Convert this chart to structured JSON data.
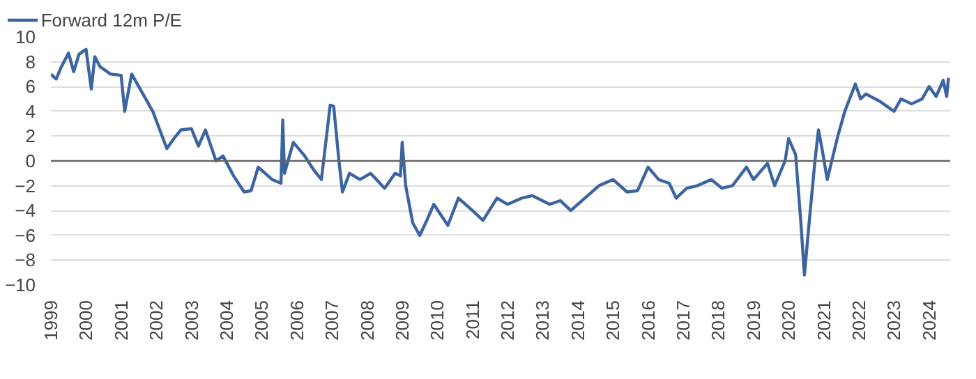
{
  "chart_data": {
    "type": "line",
    "x": [
      1999.0,
      1999.15,
      1999.3,
      1999.5,
      1999.65,
      1999.8,
      2000.0,
      2000.15,
      2000.25,
      2000.4,
      2000.7,
      2001.0,
      2001.1,
      2001.3,
      2001.5,
      2001.9,
      2002.1,
      2002.3,
      2002.5,
      2002.7,
      2003.0,
      2003.2,
      2003.4,
      2003.7,
      2003.9,
      2004.2,
      2004.5,
      2004.7,
      2004.9,
      2005.3,
      2005.55,
      2005.6,
      2005.65,
      2005.9,
      2006.2,
      2006.5,
      2006.7,
      2006.95,
      2007.05,
      2007.2,
      2007.3,
      2007.5,
      2007.8,
      2008.1,
      2008.5,
      2008.8,
      2008.95,
      2009.0,
      2009.1,
      2009.3,
      2009.5,
      2009.7,
      2009.9,
      2010.3,
      2010.6,
      2011.0,
      2011.3,
      2011.7,
      2012.0,
      2012.4,
      2012.7,
      2013.2,
      2013.5,
      2013.8,
      2014.2,
      2014.6,
      2015.0,
      2015.4,
      2015.7,
      2016.0,
      2016.3,
      2016.6,
      2016.8,
      2017.1,
      2017.4,
      2017.8,
      2018.1,
      2018.4,
      2018.8,
      2019.0,
      2019.4,
      2019.6,
      2019.9,
      2020.0,
      2020.2,
      2020.35,
      2020.45,
      2020.6,
      2020.75,
      2020.85,
      2020.95,
      2021.1,
      2021.4,
      2021.6,
      2021.9,
      2022.05,
      2022.2,
      2022.6,
      2023.0,
      2023.2,
      2023.5,
      2023.8,
      2024.0,
      2024.2,
      2024.4,
      2024.5,
      2024.55
    ],
    "series": [
      {
        "name": "Forward 12m P/E",
        "color": "#3b64a0",
        "values": [
          7.0,
          6.6,
          7.6,
          8.7,
          7.2,
          8.6,
          9.0,
          5.8,
          8.4,
          7.6,
          7.0,
          6.9,
          4.0,
          7.0,
          6.0,
          4.0,
          2.5,
          1.0,
          1.8,
          2.5,
          2.6,
          1.2,
          2.5,
          0.0,
          0.4,
          -1.2,
          -2.5,
          -2.4,
          -0.5,
          -1.5,
          -1.8,
          3.3,
          -1.0,
          1.5,
          0.5,
          -0.8,
          -1.5,
          4.5,
          4.4,
          0.0,
          -2.5,
          -1.0,
          -1.5,
          -1.0,
          -2.2,
          -1.0,
          -1.2,
          1.5,
          -2.0,
          -5.0,
          -6.0,
          -4.8,
          -3.5,
          -5.2,
          -3.0,
          -4.0,
          -4.8,
          -3.0,
          -3.5,
          -3.0,
          -2.8,
          -3.5,
          -3.2,
          -4.0,
          -3.0,
          -2.0,
          -1.5,
          -2.5,
          -2.4,
          -0.5,
          -1.5,
          -1.8,
          -3.0,
          -2.2,
          -2.0,
          -1.5,
          -2.2,
          -2.0,
          -0.5,
          -1.5,
          -0.2,
          -2.0,
          0.0,
          1.8,
          0.5,
          -5.0,
          -9.2,
          -4.5,
          0.0,
          2.5,
          1.0,
          -1.5,
          2.0,
          4.0,
          6.2,
          5.0,
          5.4,
          4.8,
          4.0,
          5.0,
          4.6,
          5.0,
          6.0,
          5.2,
          6.5,
          5.2,
          6.7
        ]
      }
    ],
    "xlim": [
      1999,
      2024.6
    ],
    "xticks": [
      1999,
      2000,
      2001,
      2002,
      2003,
      2004,
      2005,
      2006,
      2007,
      2008,
      2009,
      2010,
      2011,
      2012,
      2013,
      2014,
      2015,
      2016,
      2017,
      2018,
      2019,
      2020,
      2021,
      2022,
      2023,
      2024
    ],
    "ylim": [
      -10,
      10
    ],
    "yticks": [
      -10,
      -8,
      -6,
      -4,
      -2,
      0,
      2,
      4,
      6,
      8,
      10
    ],
    "grid": "y",
    "legend": "top left",
    "line_style": "solid",
    "ref_lines": [
      {
        "axis": "y",
        "value": 0,
        "color": "#666666"
      }
    ]
  }
}
